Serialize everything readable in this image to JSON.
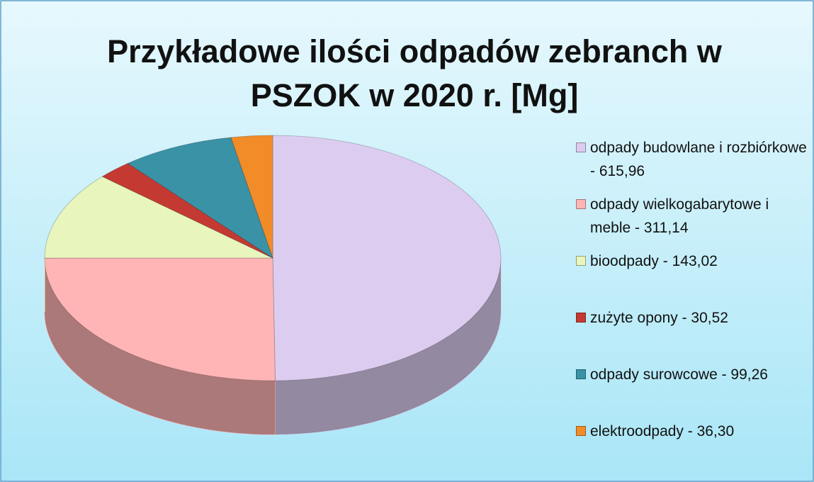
{
  "chart_data": {
    "type": "pie3d",
    "title": "Przykładowe ilości odpadów zebranch w PSZOK w 2020 r. [Mg]",
    "categories": [
      "odpady budowlane i rozbiórkowe - 615,96",
      "odpady wielkogabarytowe i meble - 311,14",
      "bioodpady - 143,02",
      "zużyte opony - 30,52",
      "odpady surowcowe - 99,26",
      "elektroodpady - 36,30"
    ],
    "values": [
      615.96,
      311.14,
      143.02,
      30.52,
      99.26,
      36.3
    ],
    "colors": [
      "#dccdf0",
      "#ffb5b5",
      "#e8f5bd",
      "#c43a32",
      "#3a92a6",
      "#f28c28"
    ],
    "legend": "right"
  }
}
